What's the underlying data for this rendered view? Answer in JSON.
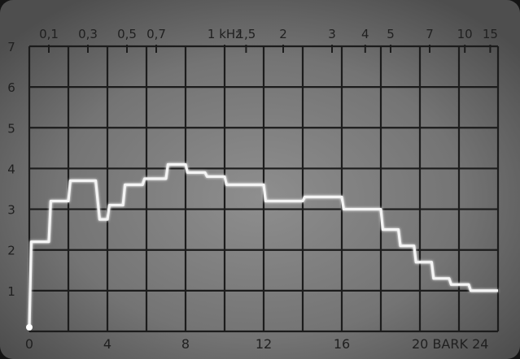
{
  "chart_data": {
    "type": "line",
    "bottom_axis_labels": [
      "0",
      "4",
      "8",
      "12",
      "16",
      "20 BARK 24"
    ],
    "top_axis_labels": [
      "0,1",
      "0,3",
      "0,5",
      "0,7",
      "1 kHz",
      "1,5",
      "2",
      "3",
      "4",
      "5",
      "7",
      "10",
      "15"
    ],
    "y_tick_labels": [
      "1",
      "2",
      "3",
      "4",
      "5",
      "6",
      "7"
    ],
    "xlim": [
      0,
      24
    ],
    "ylim": [
      0,
      7
    ],
    "grid": true,
    "series": [
      {
        "x": [
          0,
          0.1,
          1,
          1.1,
          2,
          2.1,
          3.4,
          3.6,
          4,
          4.1,
          4.8,
          4.9,
          5.8,
          5.9,
          7,
          7.1,
          8,
          8.1,
          9,
          9.1,
          10,
          10.1,
          12,
          12.1,
          14,
          14.1,
          16,
          16.1,
          18,
          18.1,
          18.9,
          19,
          19.7,
          19.8,
          20.6,
          20.7,
          21.5,
          21.6,
          22.5,
          22.6,
          24
        ],
        "y": [
          0.1,
          2.2,
          2.2,
          3.2,
          3.2,
          3.7,
          3.7,
          2.75,
          2.75,
          3.1,
          3.1,
          3.6,
          3.6,
          3.75,
          3.75,
          4.1,
          4.1,
          3.9,
          3.9,
          3.8,
          3.8,
          3.6,
          3.6,
          3.2,
          3.2,
          3.3,
          3.3,
          3.0,
          3.0,
          2.5,
          2.5,
          2.1,
          2.1,
          1.7,
          1.7,
          1.3,
          1.3,
          1.15,
          1.15,
          1.0,
          1.0
        ]
      }
    ]
  }
}
